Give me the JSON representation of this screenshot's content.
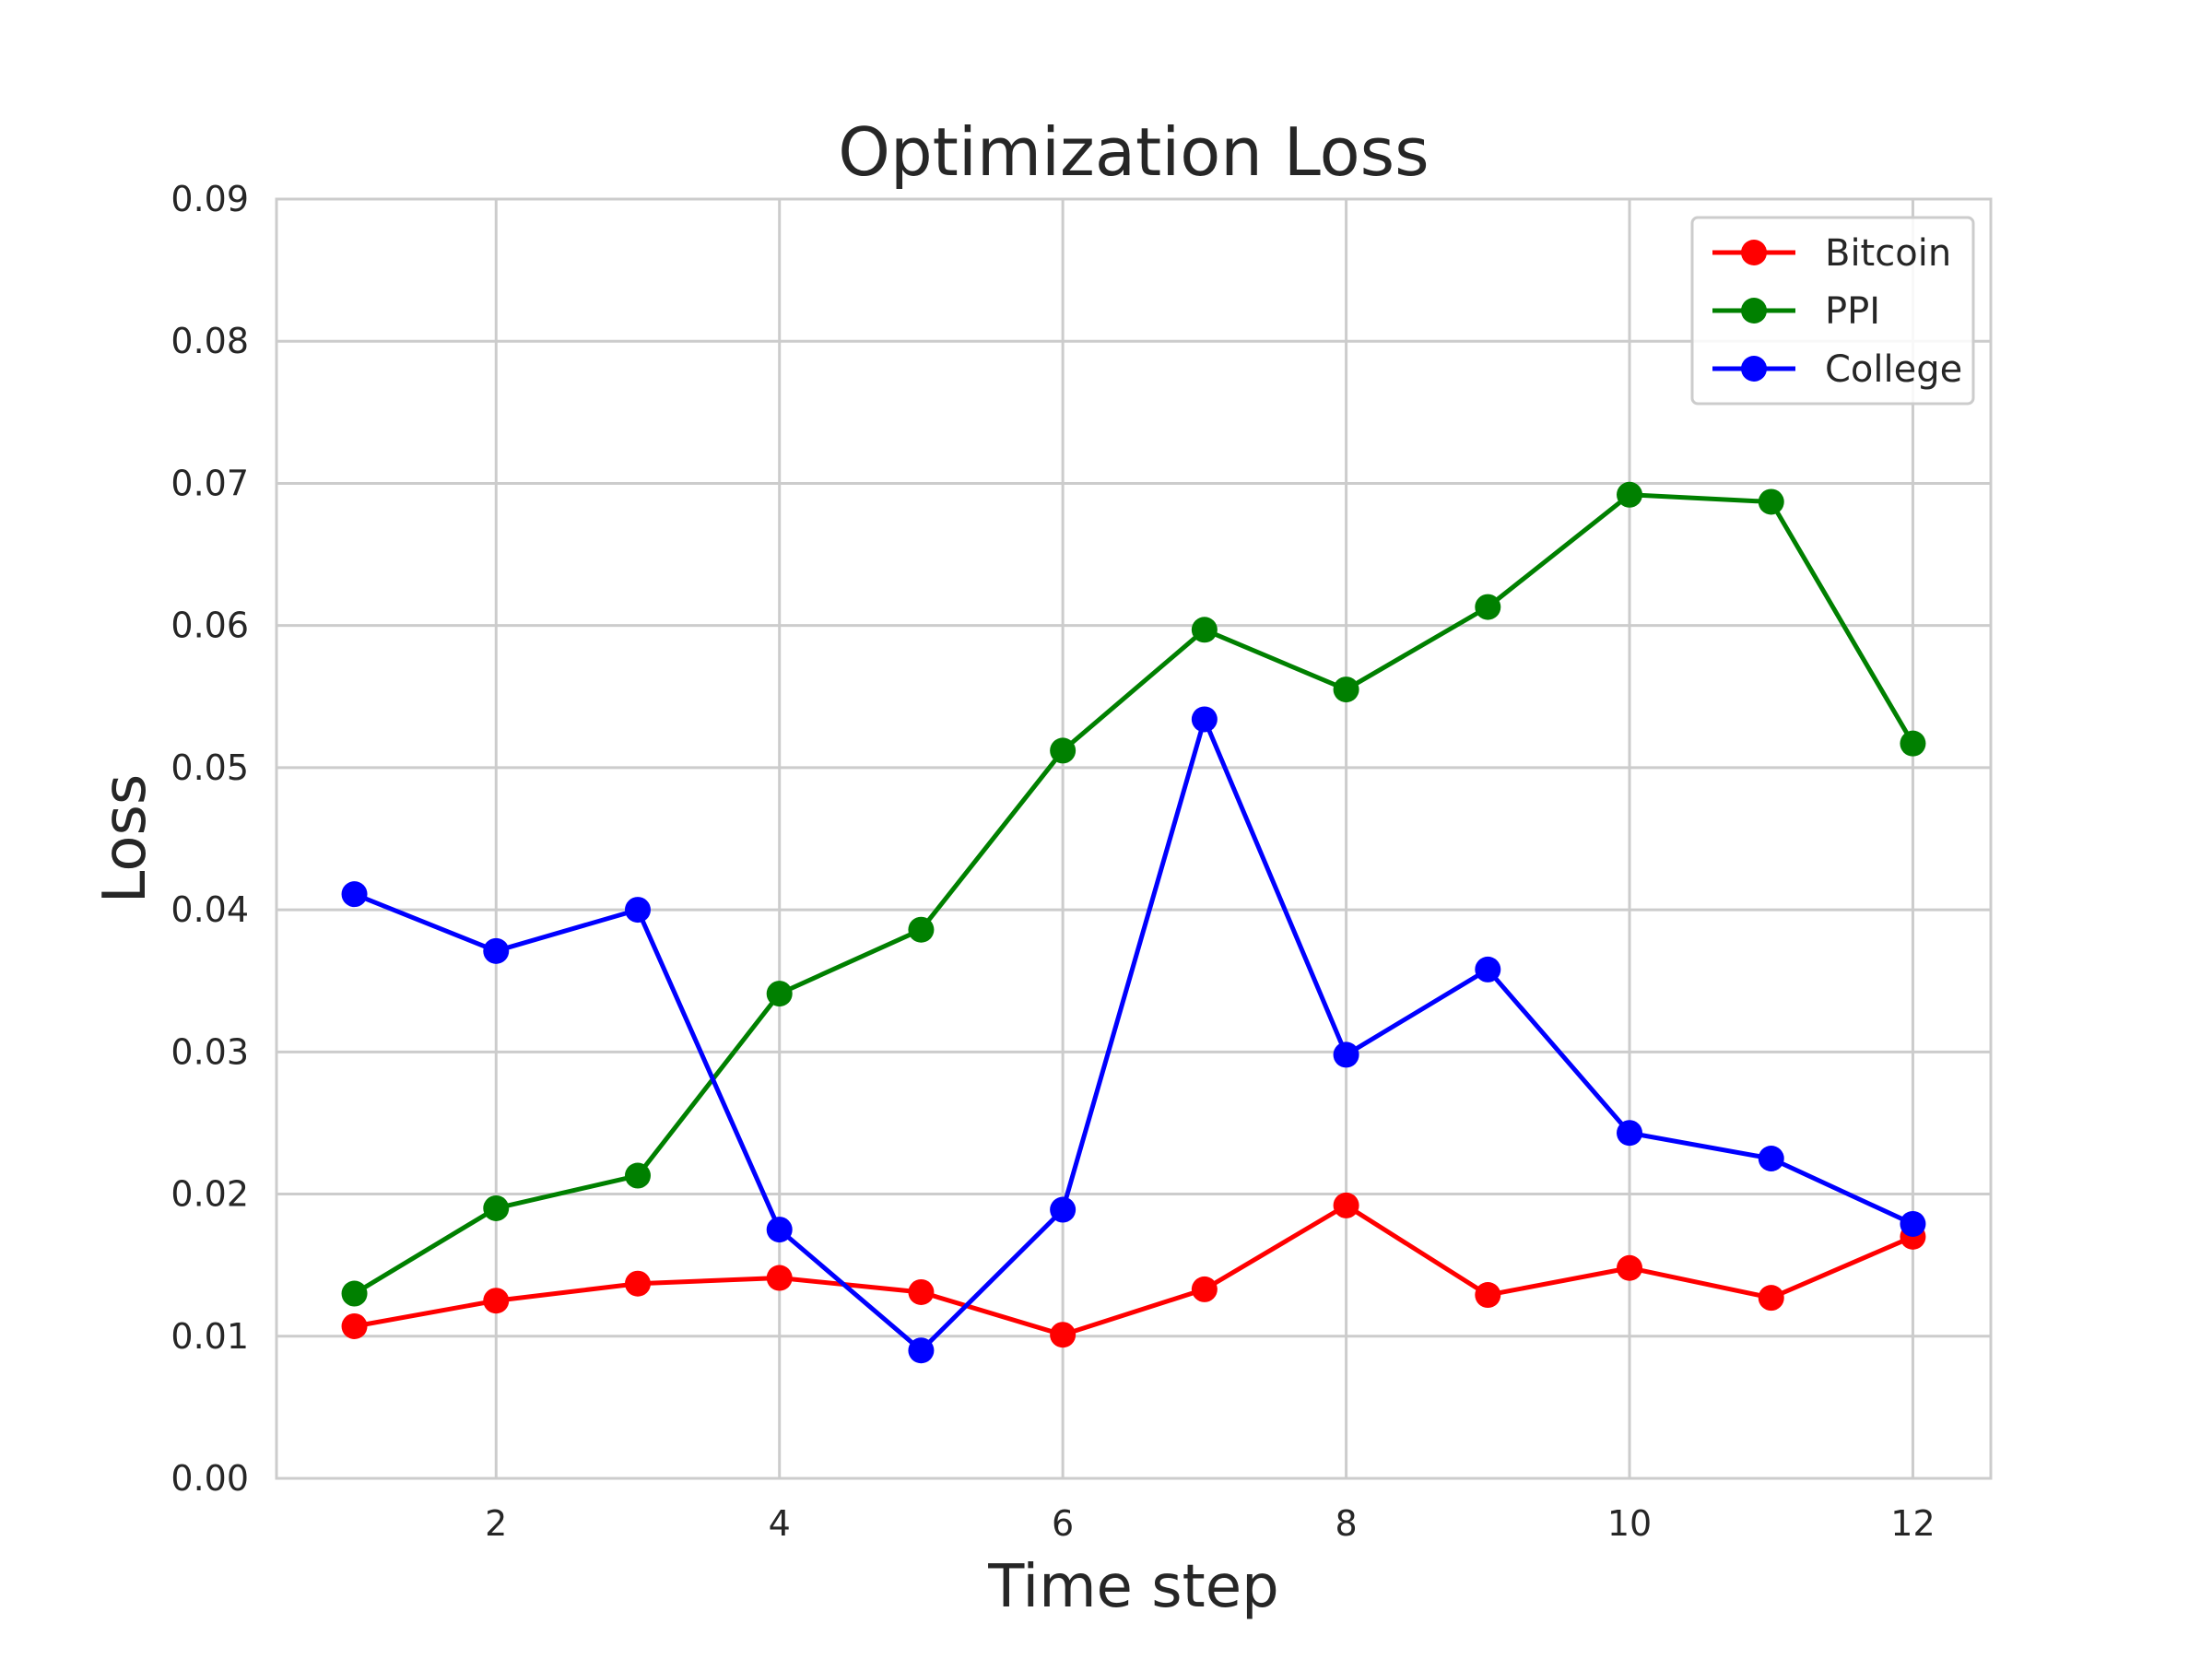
{
  "chart_data": {
    "type": "line",
    "title": "Optimization Loss",
    "xlabel": "Time step",
    "ylabel": "Loss",
    "x": [
      1,
      2,
      3,
      4,
      5,
      6,
      7,
      8,
      9,
      10,
      11,
      12
    ],
    "xlim": [
      0.45,
      12.55
    ],
    "ylim": [
      0.0,
      0.09
    ],
    "xticks": [
      2,
      4,
      6,
      8,
      10,
      12
    ],
    "xtick_labels": [
      "2",
      "4",
      "6",
      "8",
      "10",
      "12"
    ],
    "yticks": [
      0.0,
      0.01,
      0.02,
      0.03,
      0.04,
      0.05,
      0.06,
      0.07,
      0.08,
      0.09
    ],
    "ytick_labels": [
      "0.00",
      "0.01",
      "0.02",
      "0.03",
      "0.04",
      "0.05",
      "0.06",
      "0.07",
      "0.08",
      "0.09"
    ],
    "grid": true,
    "legend_position": "top-right",
    "series": [
      {
        "name": "Bitcoin",
        "color": "#ff0000",
        "values": [
          0.0107,
          0.0125,
          0.0137,
          0.0141,
          0.0131,
          0.0101,
          0.0133,
          0.0192,
          0.0129,
          0.0148,
          0.0127,
          0.017
        ]
      },
      {
        "name": "PPI",
        "color": "#008000",
        "values": [
          0.013,
          0.019,
          0.0213,
          0.0341,
          0.0386,
          0.0512,
          0.0597,
          0.0555,
          0.0613,
          0.0692,
          0.0687,
          0.0517
        ]
      },
      {
        "name": "College",
        "color": "#0000ff",
        "values": [
          0.0411,
          0.0371,
          0.04,
          0.0175,
          0.009,
          0.0189,
          0.0534,
          0.0298,
          0.0358,
          0.0243,
          0.0225,
          0.0179
        ]
      }
    ]
  }
}
